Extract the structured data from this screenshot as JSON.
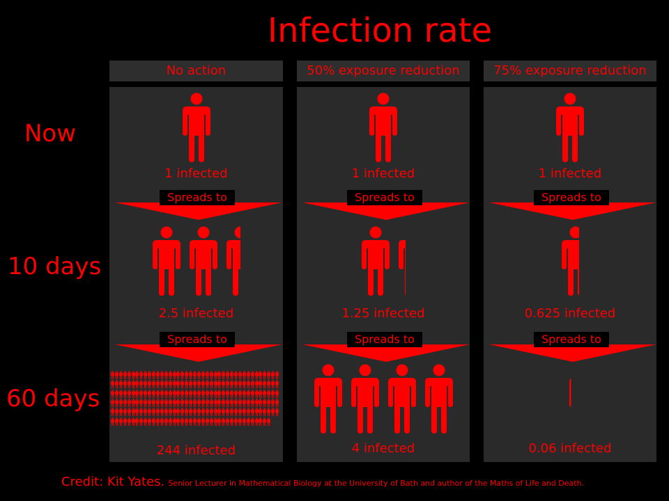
{
  "title": "Infection rate",
  "row_labels": [
    "Now",
    "10 days",
    "60 days"
  ],
  "columns": [
    {
      "header": "No action",
      "now": "1 infected",
      "day10": "2.5 infected",
      "day60": "244 infected",
      "now_people": 1,
      "day10_people": 2.5,
      "day60_people": 244
    },
    {
      "header": "50% exposure reduction",
      "now": "1 infected",
      "day10": "1.25 infected",
      "day60": "4 infected",
      "now_people": 1,
      "day10_people": 1.25,
      "day60_people": 4
    },
    {
      "header": "75% exposure reduction",
      "now": "1 infected",
      "day10": "0.625 infected",
      "day60": "0.06 infected",
      "now_people": 1,
      "day10_people": 0.625,
      "day60_people": 0.06
    }
  ],
  "spreads_label": "Spreads to",
  "credit": {
    "main": "Credit: Kit Yates.",
    "sub": "Senior Lecturer in Mathematical Biology at the University of Bath and author of the Maths of Life and Death."
  },
  "colors": {
    "accent": "#ff0000",
    "panel": "#2a2a2a",
    "header": "#2e2e2e",
    "background": "#000000"
  },
  "icons": {
    "person": "person-icon",
    "arrow": "down-arrow-icon"
  }
}
